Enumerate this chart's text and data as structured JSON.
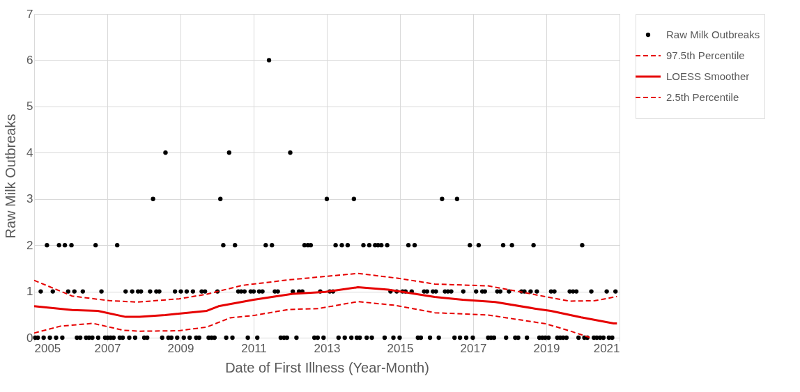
{
  "chart_data": {
    "type": "scatter",
    "xlabel": "Date of First Illness (Year-Month)",
    "ylabel": "Raw Milk Outbreaks",
    "xlim": [
      2005,
      2021
    ],
    "xticks": [
      2005,
      2007,
      2009,
      2011,
      2013,
      2015,
      2017,
      2019,
      2021
    ],
    "ylim": [
      0,
      7
    ],
    "yticks": [
      0,
      1,
      2,
      3,
      4,
      5,
      6,
      7
    ],
    "grid": true,
    "legend": "right",
    "series": [
      {
        "name": "Raw Milk Outbreaks",
        "marker": "circle",
        "color": "#000000",
        "x": [
          2005.03,
          2005.1,
          2005.26,
          2005.43,
          2005.6,
          2005.77,
          2006.17,
          2006.26,
          2006.42,
          2006.5,
          2006.59,
          2006.75,
          2006.94,
          2007.01,
          2007.09,
          2007.17,
          2007.34,
          2007.42,
          2007.6,
          2007.76,
          2008.01,
          2008.09,
          2008.5,
          2008.67,
          2008.75,
          2008.91,
          2009.09,
          2009.25,
          2009.43,
          2009.51,
          2009.77,
          2009.85,
          2009.93,
          2010.25,
          2010.42,
          2010.84,
          2011.1,
          2011.74,
          2011.83,
          2011.91,
          2012.17,
          2012.66,
          2012.75,
          2012.91,
          2013.32,
          2013.49,
          2013.67,
          2013.82,
          2013.9,
          2014.09,
          2014.23,
          2014.58,
          2014.82,
          2014.99,
          2015.49,
          2015.57,
          2015.82,
          2016.06,
          2016.49,
          2016.64,
          2016.81,
          2016.99,
          2017.41,
          2017.49,
          2017.57,
          2017.9,
          2018.15,
          2018.23,
          2018.47,
          2018.81,
          2018.89,
          2018.97,
          2019.06,
          2019.3,
          2019.38,
          2019.46,
          2019.55,
          2019.88,
          2020.04,
          2020.12,
          2020.3,
          2020.38,
          2020.47,
          2020.56,
          2020.71,
          2020.8,
          2005.18,
          2005.51,
          2005.93,
          2006.1,
          2006.33,
          2006.84,
          2007.5,
          2007.68,
          2007.84,
          2007.92,
          2008.17,
          2008.34,
          2008.42,
          2008.85,
          2009.01,
          2009.17,
          2009.34,
          2009.58,
          2009.67,
          2010.01,
          2010.58,
          2010.66,
          2010.75,
          2010.92,
          2011.0,
          2011.15,
          2011.24,
          2011.58,
          2011.66,
          2012.07,
          2012.24,
          2012.33,
          2012.82,
          2013.08,
          2013.17,
          2014.74,
          2014.91,
          2015.07,
          2015.15,
          2015.32,
          2015.66,
          2015.74,
          2015.9,
          2015.98,
          2016.23,
          2016.31,
          2016.4,
          2016.73,
          2017.08,
          2017.25,
          2017.32,
          2017.66,
          2017.74,
          2017.98,
          2018.32,
          2018.4,
          2018.57,
          2018.74,
          2019.13,
          2019.22,
          2019.64,
          2019.73,
          2019.82,
          2020.23,
          2020.65,
          2020.89,
          2005.35,
          2005.68,
          2005.84,
          2006.02,
          2006.68,
          2007.27,
          2010.17,
          2010.49,
          2011.33,
          2011.5,
          2012.39,
          2012.48,
          2012.56,
          2013.24,
          2013.41,
          2013.57,
          2014.0,
          2014.16,
          2014.32,
          2014.4,
          2014.49,
          2014.65,
          2015.23,
          2015.4,
          2016.91,
          2017.15,
          2017.82,
          2018.06,
          2018.65,
          2019.98,
          2008.25,
          2010.09,
          2013.0,
          2013.74,
          2016.15,
          2016.56,
          2008.59,
          2010.33,
          2012.0,
          2011.42
        ],
        "values": [
          0,
          0,
          0,
          0,
          0,
          0,
          0,
          0,
          0,
          0,
          0,
          0,
          0,
          0,
          0,
          0,
          0,
          0,
          0,
          0,
          0,
          0,
          0,
          0,
          0,
          0,
          0,
          0,
          0,
          0,
          0,
          0,
          0,
          0,
          0,
          0,
          0,
          0,
          0,
          0,
          0,
          0,
          0,
          0,
          0,
          0,
          0,
          0,
          0,
          0,
          0,
          0,
          0,
          0,
          0,
          0,
          0,
          0,
          0,
          0,
          0,
          0,
          0,
          0,
          0,
          0,
          0,
          0,
          0,
          0,
          0,
          0,
          0,
          0,
          0,
          0,
          0,
          0,
          0,
          0,
          0,
          0,
          0,
          0,
          0,
          0,
          1,
          1,
          1,
          1,
          1,
          1,
          1,
          1,
          1,
          1,
          1,
          1,
          1,
          1,
          1,
          1,
          1,
          1,
          1,
          1,
          1,
          1,
          1,
          1,
          1,
          1,
          1,
          1,
          1,
          1,
          1,
          1,
          1,
          1,
          1,
          1,
          1,
          1,
          1,
          1,
          1,
          1,
          1,
          1,
          1,
          1,
          1,
          1,
          1,
          1,
          1,
          1,
          1,
          1,
          1,
          1,
          1,
          1,
          1,
          1,
          1,
          1,
          1,
          1,
          1,
          1,
          2,
          2,
          2,
          2,
          2,
          2,
          2,
          2,
          2,
          2,
          2,
          2,
          2,
          2,
          2,
          2,
          2,
          2,
          2,
          2,
          2,
          2,
          2,
          2,
          2,
          2,
          2,
          2,
          2,
          2,
          3,
          3,
          3,
          3,
          3,
          3,
          4,
          4,
          4,
          6
        ]
      },
      {
        "name": "97.5th Percentile",
        "type": "line",
        "line_style": "dashed",
        "marker": "none",
        "color": "#e60000",
        "x": [
          2005.0,
          2006.04,
          2007.06,
          2007.82,
          2008.96,
          2009.72,
          2010.68,
          2011.95,
          2013.85,
          2014.99,
          2015.95,
          2017.41,
          2018.36,
          2019.63,
          2020.33,
          2020.93
        ],
        "values": [
          1.24,
          0.9,
          0.8,
          0.77,
          0.84,
          0.94,
          1.13,
          1.25,
          1.39,
          1.28,
          1.16,
          1.12,
          0.98,
          0.79,
          0.8,
          0.89
        ]
      },
      {
        "name": "LOESS Smoother",
        "type": "line",
        "line_style": "solid",
        "marker": "none",
        "color": "#e60000",
        "x": [
          2005.0,
          2006.04,
          2006.74,
          2007.5,
          2007.88,
          2008.58,
          2009.72,
          2010.04,
          2011.0,
          2011.5,
          2012.07,
          2012.96,
          2013.85,
          2014.68,
          2015.95,
          2016.71,
          2017.6,
          2018.68,
          2019.12,
          2019.95,
          2020.84,
          2020.93
        ],
        "values": [
          0.68,
          0.6,
          0.58,
          0.45,
          0.45,
          0.49,
          0.58,
          0.68,
          0.82,
          0.88,
          0.95,
          0.99,
          1.09,
          1.04,
          0.88,
          0.82,
          0.77,
          0.63,
          0.58,
          0.44,
          0.31,
          0.31
        ]
      },
      {
        "name": "2.5th Percentile",
        "type": "line",
        "line_style": "dashed",
        "marker": "none",
        "color": "#e60000",
        "x": [
          2005.0,
          2005.72,
          2006.61,
          2007.44,
          2007.88,
          2008.96,
          2009.72,
          2010.36,
          2011.0,
          2011.95,
          2012.77,
          2013.85,
          2014.87,
          2015.95,
          2017.41,
          2017.91,
          2018.99,
          2019.63,
          2020.2
        ],
        "values": [
          0.1,
          0.25,
          0.31,
          0.16,
          0.14,
          0.15,
          0.23,
          0.43,
          0.48,
          0.61,
          0.63,
          0.78,
          0.7,
          0.54,
          0.49,
          0.43,
          0.3,
          0.15,
          0.0
        ]
      }
    ]
  }
}
